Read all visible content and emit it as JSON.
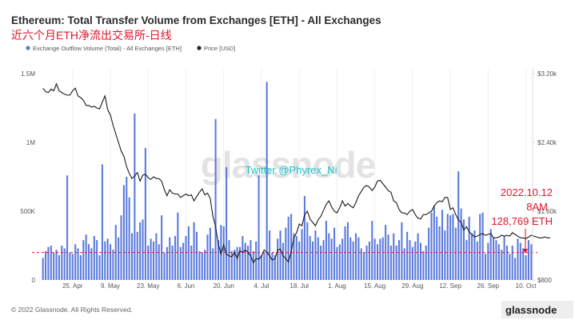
{
  "chart_data": {
    "type": "bar+line",
    "title": "Ethereum: Total Transfer Volume from Exchanges [ETH] - All Exchanges",
    "subtitle": "近六个月ETH净流出交易所-日线",
    "legend": [
      {
        "name": "Exchange Outflow Volume (Total) - All Exchanges [ETH]",
        "color": "#5b7bdc"
      },
      {
        "name": "Price [USD]",
        "color": "#222222"
      }
    ],
    "x_ticks": [
      "25. Apr",
      "9. May",
      "23. May",
      "6. Jun",
      "20. Jun",
      "4. Jul",
      "18. Jul",
      "1. Aug",
      "15. Aug",
      "29. Aug",
      "12. Sep",
      "26. Sep",
      "10. Oct"
    ],
    "y_left_ticks": [
      "0",
      "500K",
      "1M",
      "1.5M"
    ],
    "y_left_range": [
      0,
      1500000
    ],
    "y_right_ticks": [
      "$800",
      "$1.60k",
      "$2.40k",
      "$3.20k"
    ],
    "y_right_range": [
      800,
      3200
    ],
    "start_date": "2022-04-14",
    "outflow_eth": [
      160000,
      210000,
      240000,
      250000,
      200000,
      220000,
      180000,
      250000,
      230000,
      760000,
      200000,
      190000,
      260000,
      230000,
      180000,
      290000,
      330000,
      260000,
      230000,
      320000,
      290000,
      180000,
      840000,
      280000,
      300000,
      260000,
      220000,
      400000,
      310000,
      470000,
      690000,
      750000,
      600000,
      340000,
      1210000,
      350000,
      420000,
      440000,
      960000,
      250000,
      300000,
      280000,
      340000,
      260000,
      470000,
      200000,
      240000,
      310000,
      250000,
      320000,
      490000,
      240000,
      270000,
      320000,
      390000,
      250000,
      420000,
      350000,
      210000,
      200000,
      220000,
      330000,
      380000,
      230000,
      1170000,
      290000,
      400000,
      390000,
      820000,
      290000,
      210000,
      220000,
      240000,
      240000,
      320000,
      270000,
      250000,
      290000,
      210000,
      280000,
      760000,
      180000,
      200000,
      1440000,
      360000,
      200000,
      180000,
      300000,
      360000,
      270000,
      380000,
      460000,
      480000,
      340000,
      320000,
      280000,
      370000,
      610000,
      420000,
      320000,
      280000,
      360000,
      310000,
      250000,
      290000,
      430000,
      340000,
      300000,
      380000,
      240000,
      260000,
      300000,
      390000,
      420000,
      310000,
      280000,
      340000,
      310000,
      230000,
      200000,
      250000,
      280000,
      430000,
      300000,
      260000,
      300000,
      310000,
      400000,
      330000,
      250000,
      340000,
      250000,
      290000,
      420000,
      230000,
      350000,
      290000,
      240000,
      280000,
      340000,
      270000,
      210000,
      250000,
      380000,
      490000,
      540000,
      460000,
      390000,
      510000,
      360000,
      480000,
      470000,
      480000,
      380000,
      790000,
      520000,
      440000,
      290000,
      460000,
      340000,
      360000,
      280000,
      480000,
      490000,
      190000,
      270000,
      370000,
      310000,
      290000,
      260000,
      220000,
      320000,
      250000,
      190000,
      250000,
      160000,
      300000,
      270000,
      230000,
      180000,
      290000,
      260000
    ],
    "price_usd": [
      3030,
      2990,
      2980,
      3020,
      3000,
      3080,
      3000,
      2980,
      2960,
      2950,
      2950,
      3000,
      3030,
      2940,
      2920,
      2890,
      2830,
      2830,
      2810,
      2820,
      2800,
      2790,
      2870,
      2940,
      2780,
      2720,
      2600,
      2500,
      2400,
      2300,
      2240,
      2120,
      2040,
      1980,
      2010,
      2050,
      1950,
      2020,
      2030,
      1990,
      1970,
      2000,
      1980,
      1980,
      1950,
      1850,
      1780,
      1850,
      1810,
      1800,
      1800,
      1760,
      1780,
      1800,
      1780,
      1790,
      1720,
      1770,
      1820,
      1860,
      1790,
      1810,
      1750,
      1540,
      1420,
      1220,
      1100,
      1210,
      1100,
      1080,
      1070,
      1120,
      1050,
      1140,
      1120,
      1150,
      1120,
      1080,
      1000,
      1050,
      1040,
      1080,
      1150,
      1120,
      1080,
      1030,
      1050,
      1150,
      1160,
      1080,
      1050,
      1010,
      1130,
      1290,
      1350,
      1450,
      1430,
      1560,
      1600,
      1510,
      1470,
      1430,
      1500,
      1540,
      1610,
      1680,
      1720,
      1650,
      1600,
      1580,
      1640,
      1720,
      1660,
      1690,
      1660,
      1640,
      1700,
      1780,
      1830,
      1880,
      1900,
      1880,
      1840,
      1880,
      1950,
      1960,
      1920,
      1880,
      1840,
      1820,
      1720,
      1700,
      1620,
      1580,
      1580,
      1560,
      1600,
      1620,
      1560,
      1520,
      1510,
      1560,
      1560,
      1580,
      1600,
      1660,
      1700,
      1720,
      1710,
      1760,
      1760,
      1620,
      1640,
      1560,
      1500,
      1470,
      1380,
      1420,
      1360,
      1330,
      1300,
      1310,
      1330,
      1340,
      1320,
      1330,
      1340,
      1290,
      1290,
      1300,
      1320,
      1310,
      1320,
      1310,
      1350,
      1330,
      1310,
      1290,
      1290,
      1280,
      1300,
      1320,
      1310,
      1300,
      1290,
      1290,
      1300,
      1290,
      1290
    ],
    "threshold_eth": 200000,
    "watermarks": [
      "glassnode",
      "Twitter @Phyrex_Ni"
    ],
    "annotation": {
      "lines": [
        "2022.10.12",
        "8AM",
        "128,769 ETH"
      ],
      "arrow": "down"
    },
    "footer": "© 2022 Glassnode. All Rights Reserved.",
    "brand": "glassnode"
  }
}
